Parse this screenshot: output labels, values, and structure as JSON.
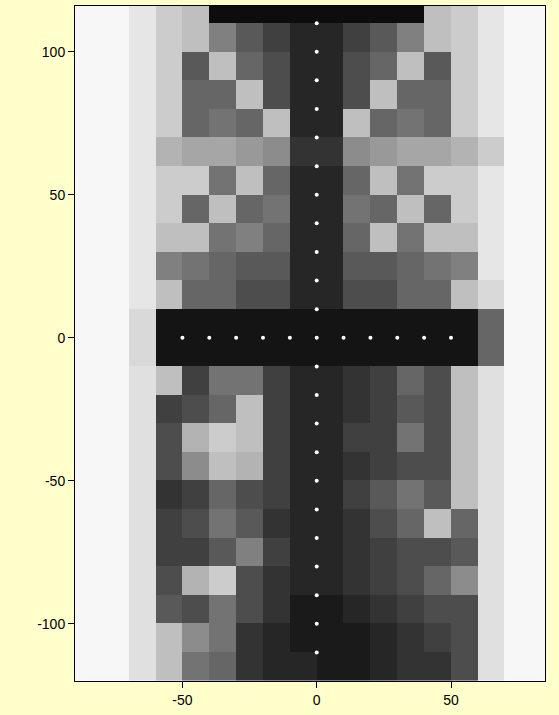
{
  "chart_data": {
    "type": "heatmap",
    "color": "gray",
    "grid": false,
    "xlim": [
      -90,
      85
    ],
    "ylim": [
      -120,
      116
    ],
    "xticks": [
      -50,
      0,
      50
    ],
    "yticks": [
      -100,
      -50,
      0,
      50,
      100
    ],
    "zlim": [
      0,
      1
    ],
    "x": [
      -85,
      -75,
      -65,
      -55,
      -45,
      -35,
      -25,
      -15,
      -5,
      5,
      15,
      25,
      35,
      45,
      55,
      65,
      75,
      85
    ],
    "y": [
      115,
      105,
      95,
      85,
      75,
      65,
      55,
      45,
      35,
      25,
      15,
      5,
      -5,
      -15,
      -25,
      -35,
      -45,
      -55,
      -65,
      -75,
      -85,
      -95,
      -105,
      -115
    ],
    "z": [
      [
        0.97,
        0.97,
        0.9,
        0.8,
        0.75,
        0.05,
        0.05,
        0.05,
        0.05,
        0.05,
        0.05,
        0.05,
        0.05,
        0.75,
        0.8,
        0.9,
        0.97,
        0.97
      ],
      [
        0.97,
        0.97,
        0.9,
        0.8,
        0.75,
        0.5,
        0.35,
        0.25,
        0.15,
        0.15,
        0.25,
        0.35,
        0.5,
        0.75,
        0.8,
        0.9,
        0.97,
        0.97
      ],
      [
        0.97,
        0.97,
        0.9,
        0.8,
        0.35,
        0.75,
        0.4,
        0.3,
        0.15,
        0.15,
        0.3,
        0.4,
        0.75,
        0.35,
        0.8,
        0.9,
        0.97,
        0.97
      ],
      [
        0.97,
        0.97,
        0.9,
        0.8,
        0.4,
        0.4,
        0.75,
        0.3,
        0.15,
        0.15,
        0.3,
        0.75,
        0.4,
        0.4,
        0.8,
        0.9,
        0.97,
        0.97
      ],
      [
        0.97,
        0.97,
        0.9,
        0.8,
        0.4,
        0.45,
        0.4,
        0.75,
        0.15,
        0.15,
        0.75,
        0.4,
        0.45,
        0.4,
        0.8,
        0.9,
        0.97,
        0.97
      ],
      [
        0.97,
        0.97,
        0.9,
        0.7,
        0.65,
        0.65,
        0.6,
        0.55,
        0.2,
        0.2,
        0.55,
        0.6,
        0.65,
        0.65,
        0.7,
        0.8,
        0.97,
        0.97
      ],
      [
        0.97,
        0.97,
        0.9,
        0.8,
        0.8,
        0.45,
        0.75,
        0.4,
        0.15,
        0.15,
        0.4,
        0.75,
        0.45,
        0.8,
        0.8,
        0.9,
        0.97,
        0.97
      ],
      [
        0.97,
        0.97,
        0.9,
        0.8,
        0.4,
        0.75,
        0.4,
        0.45,
        0.15,
        0.15,
        0.45,
        0.4,
        0.75,
        0.4,
        0.8,
        0.9,
        0.97,
        0.97
      ],
      [
        0.97,
        0.97,
        0.9,
        0.75,
        0.75,
        0.45,
        0.5,
        0.4,
        0.15,
        0.15,
        0.4,
        0.75,
        0.45,
        0.75,
        0.75,
        0.9,
        0.97,
        0.97
      ],
      [
        0.97,
        0.97,
        0.9,
        0.5,
        0.45,
        0.4,
        0.35,
        0.35,
        0.15,
        0.15,
        0.35,
        0.35,
        0.4,
        0.45,
        0.5,
        0.9,
        0.97,
        0.97
      ],
      [
        0.97,
        0.97,
        0.9,
        0.75,
        0.4,
        0.4,
        0.3,
        0.3,
        0.15,
        0.15,
        0.3,
        0.3,
        0.4,
        0.4,
        0.75,
        0.85,
        0.97,
        0.97
      ],
      [
        0.97,
        0.97,
        0.85,
        0.08,
        0.08,
        0.08,
        0.08,
        0.08,
        0.08,
        0.08,
        0.08,
        0.08,
        0.08,
        0.08,
        0.08,
        0.4,
        0.97,
        0.97
      ],
      [
        0.97,
        0.97,
        0.85,
        0.08,
        0.08,
        0.08,
        0.08,
        0.08,
        0.08,
        0.08,
        0.08,
        0.08,
        0.08,
        0.08,
        0.08,
        0.4,
        0.97,
        0.97
      ],
      [
        0.97,
        0.97,
        0.88,
        0.75,
        0.25,
        0.45,
        0.45,
        0.25,
        0.15,
        0.15,
        0.2,
        0.25,
        0.4,
        0.3,
        0.75,
        0.88,
        0.97,
        0.97
      ],
      [
        0.97,
        0.97,
        0.88,
        0.25,
        0.3,
        0.4,
        0.75,
        0.25,
        0.15,
        0.15,
        0.2,
        0.25,
        0.35,
        0.3,
        0.75,
        0.88,
        0.97,
        0.97
      ],
      [
        0.97,
        0.97,
        0.88,
        0.3,
        0.7,
        0.8,
        0.75,
        0.25,
        0.15,
        0.15,
        0.25,
        0.25,
        0.45,
        0.3,
        0.75,
        0.88,
        0.97,
        0.97
      ],
      [
        0.97,
        0.97,
        0.88,
        0.3,
        0.55,
        0.75,
        0.7,
        0.25,
        0.15,
        0.15,
        0.2,
        0.25,
        0.3,
        0.3,
        0.75,
        0.88,
        0.97,
        0.97
      ],
      [
        0.97,
        0.97,
        0.88,
        0.2,
        0.25,
        0.4,
        0.3,
        0.25,
        0.15,
        0.15,
        0.25,
        0.35,
        0.45,
        0.35,
        0.75,
        0.88,
        0.97,
        0.97
      ],
      [
        0.97,
        0.97,
        0.88,
        0.25,
        0.3,
        0.45,
        0.35,
        0.2,
        0.15,
        0.15,
        0.2,
        0.3,
        0.4,
        0.75,
        0.4,
        0.88,
        0.97,
        0.97
      ],
      [
        0.97,
        0.97,
        0.88,
        0.25,
        0.25,
        0.35,
        0.5,
        0.25,
        0.15,
        0.15,
        0.2,
        0.25,
        0.3,
        0.3,
        0.35,
        0.88,
        0.97,
        0.97
      ],
      [
        0.97,
        0.97,
        0.88,
        0.3,
        0.7,
        0.8,
        0.3,
        0.2,
        0.15,
        0.15,
        0.2,
        0.25,
        0.3,
        0.4,
        0.55,
        0.88,
        0.97,
        0.97
      ],
      [
        0.97,
        0.97,
        0.88,
        0.35,
        0.3,
        0.45,
        0.3,
        0.2,
        0.1,
        0.1,
        0.15,
        0.2,
        0.25,
        0.3,
        0.3,
        0.88,
        0.97,
        0.97
      ],
      [
        0.97,
        0.97,
        0.88,
        0.75,
        0.55,
        0.45,
        0.2,
        0.15,
        0.1,
        0.1,
        0.1,
        0.15,
        0.2,
        0.25,
        0.3,
        0.88,
        0.97,
        0.97
      ],
      [
        0.97,
        0.97,
        0.88,
        0.75,
        0.45,
        0.4,
        0.2,
        0.15,
        0.15,
        0.1,
        0.1,
        0.15,
        0.2,
        0.2,
        0.3,
        0.88,
        0.97,
        0.97
      ]
    ],
    "points": {
      "color": "#ffffff",
      "marker": "circle",
      "x": [
        0,
        0,
        0,
        0,
        0,
        0,
        0,
        0,
        0,
        0,
        0,
        0,
        0,
        0,
        0,
        0,
        0,
        0,
        0,
        0,
        0,
        0,
        0,
        -50,
        -40,
        -30,
        -20,
        -10,
        10,
        20,
        30,
        40,
        50
      ],
      "y": [
        -110,
        -100,
        -90,
        -80,
        -70,
        -60,
        -50,
        -40,
        -30,
        -20,
        -10,
        0,
        10,
        20,
        30,
        40,
        50,
        60,
        70,
        80,
        90,
        100,
        110,
        0,
        0,
        0,
        0,
        0,
        0,
        0,
        0,
        0,
        0
      ]
    }
  }
}
